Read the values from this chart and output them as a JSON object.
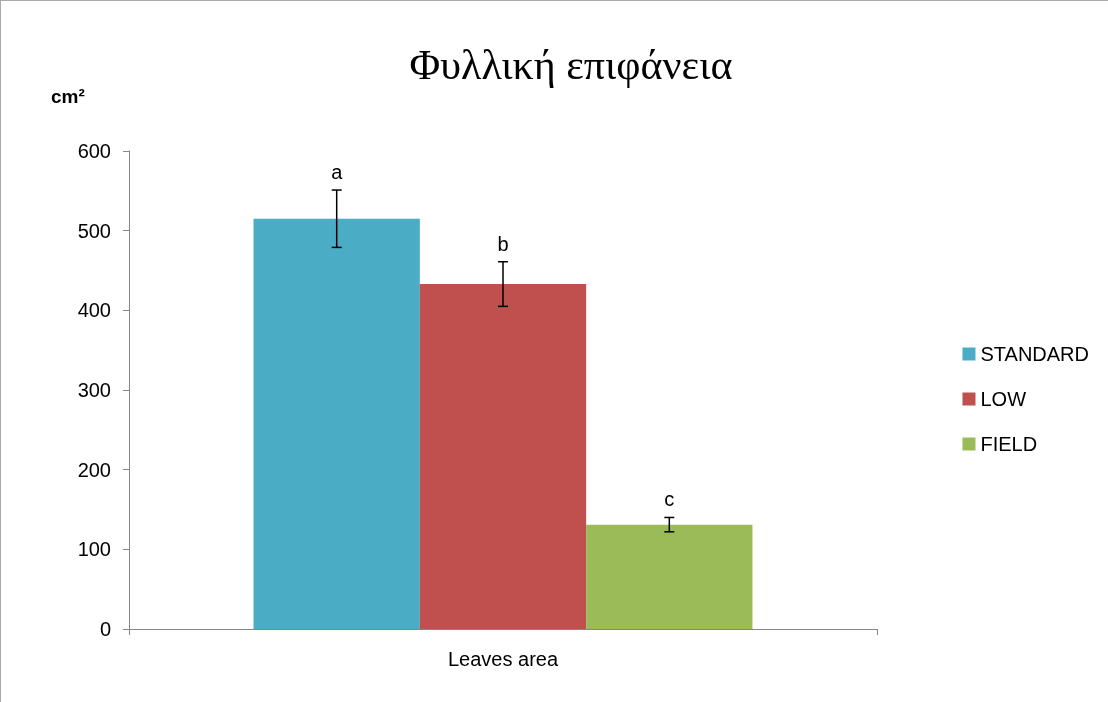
{
  "chart_data": {
    "type": "bar",
    "title": "Φυλλική επιφάνεια",
    "ylabel": "cm²",
    "categories": [
      "Leaves area"
    ],
    "series": [
      {
        "name": "STANDARD",
        "color": "#4bacc6",
        "values": [
          515
        ],
        "errors": [
          36
        ]
      },
      {
        "name": "LOW",
        "color": "#c0504d",
        "values": [
          433
        ],
        "errors": [
          28
        ]
      },
      {
        "name": "FIELD",
        "color": "#9bbb59",
        "values": [
          131
        ],
        "errors": [
          9
        ]
      }
    ],
    "annotations": [
      "a",
      "b",
      "c"
    ],
    "ylim": [
      0,
      600
    ],
    "yticks": [
      0,
      100,
      200,
      300,
      400,
      500,
      600
    ],
    "grid": false,
    "legend": "right"
  }
}
